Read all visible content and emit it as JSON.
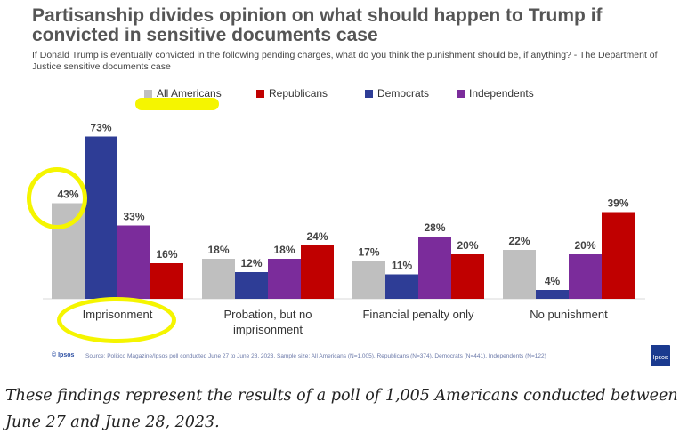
{
  "title": "Partisanship divides opinion on what should happen to Trump if convicted in sensitive documents case",
  "subtitle": "If Donald Trump is eventually convicted in the following pending charges, what do you think the punishment should be, if anything? - The Department of Justice sensitive documents case",
  "source": "Source: Politico Magazine/Ipsos poll conducted June 27 to June 28, 2023. Sample size: All Americans (N=1,005), Republicans (N=374), Democrats (N=441), Independents (N=122)",
  "ipsos_mark": "© Ipsos",
  "ipsos_logo_text": "Ipsos",
  "caption": "These findings represent the results of a poll of 1,005 Americans conducted between June 27 and June 28, 2023.",
  "colors": {
    "all_americans": "#bfbfbf",
    "republicans": "#c00000",
    "democrats": "#2e3d96",
    "independents": "#7b2c9b",
    "highlight": "#f5f500"
  },
  "chart_data": {
    "type": "bar",
    "categories": [
      "Imprisonment",
      "Probation, but no imprisonment",
      "Financial penalty only",
      "No punishment"
    ],
    "series": [
      {
        "name": "All Americans",
        "values": [
          43,
          18,
          17,
          22
        ]
      },
      {
        "name": "Democrats",
        "values": [
          73,
          12,
          11,
          4
        ]
      },
      {
        "name": "Independents",
        "values": [
          33,
          18,
          28,
          20
        ]
      },
      {
        "name": "Republicans",
        "values": [
          16,
          24,
          20,
          39
        ]
      }
    ],
    "legend_order": [
      "All Americans",
      "Republicans",
      "Democrats",
      "Independents"
    ],
    "value_suffix": "%",
    "ylim": [
      0,
      80
    ],
    "grid": false,
    "legend_position": "top"
  }
}
